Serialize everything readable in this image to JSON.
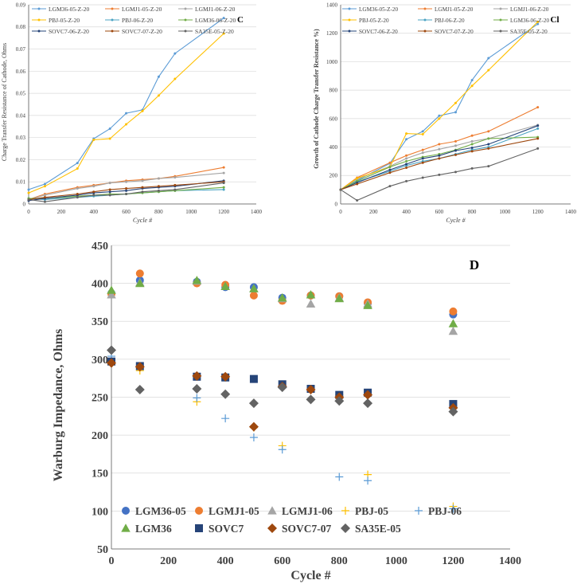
{
  "chart_data": [
    {
      "id": "C",
      "type": "line",
      "panel_label": "C",
      "ylabel": "Charge Transfer Resistance of Cathode, Ohms",
      "xlabel": "Cycle #",
      "xlim": [
        0,
        1400
      ],
      "ylim": [
        0,
        0.09
      ],
      "xticks": [
        "0",
        "200",
        "400",
        "600",
        "800",
        "1000",
        "1200",
        "1400"
      ],
      "yticks": [
        "0",
        "0.01",
        "0.02",
        "0.03",
        "0.04",
        "0.05",
        "0.06",
        "0.07",
        "0.08",
        "0.09"
      ],
      "ytick_values": [
        0,
        0.01,
        0.02,
        0.03,
        0.04,
        0.05,
        0.06,
        0.07,
        0.08,
        0.09
      ],
      "series": [
        {
          "name": "LGM36-05-Z-20",
          "color": "#5b9bd5",
          "x": [
            0,
            100,
            300,
            400,
            500,
            600,
            700,
            800,
            900,
            1200
          ],
          "y": [
            0.0065,
            0.009,
            0.0185,
            0.0295,
            0.034,
            0.041,
            0.0425,
            0.0575,
            0.068,
            0.084
          ]
        },
        {
          "name": "LGMJ1-05-Z-20",
          "color": "#ed7d31",
          "x": [
            0,
            100,
            300,
            400,
            500,
            600,
            700,
            800,
            900,
            1200
          ],
          "y": [
            0.002,
            0.0045,
            0.0075,
            0.0085,
            0.0095,
            0.0105,
            0.011,
            0.0115,
            0.0125,
            0.0165
          ]
        },
        {
          "name": "LGMJ1-06-Z-20",
          "color": "#a5a5a5",
          "x": [
            0,
            100,
            300,
            400,
            500,
            600,
            700,
            800,
            900,
            1200
          ],
          "y": [
            0.002,
            0.004,
            0.007,
            0.008,
            0.0095,
            0.01,
            0.0105,
            0.0115,
            0.012,
            0.014
          ]
        },
        {
          "name": "PBJ-05-Z-20",
          "color": "#ffc000",
          "x": [
            0,
            100,
            300,
            400,
            500,
            600,
            700,
            800,
            900,
            1200
          ],
          "y": [
            0.005,
            0.008,
            0.016,
            0.029,
            0.0295,
            0.036,
            0.042,
            0.049,
            0.0565,
            0.077
          ]
        },
        {
          "name": "PBJ-06-Z-20",
          "color": "#4ba3c3",
          "x": [
            0,
            100,
            300,
            400,
            500,
            600,
            700,
            800,
            900,
            1200
          ],
          "y": [
            0.0025,
            0.002,
            0.003,
            0.0035,
            0.004,
            0.0045,
            0.005,
            0.0055,
            0.006,
            0.0065
          ]
        },
        {
          "name": "LGM36-06-Z-20",
          "color": "#70ad47",
          "x": [
            0,
            100,
            300,
            400,
            500,
            600,
            700,
            800,
            900,
            1200
          ],
          "y": [
            0.0025,
            0.0025,
            0.0035,
            0.004,
            0.0045,
            0.0045,
            0.005,
            0.0055,
            0.006,
            0.0075
          ]
        },
        {
          "name": "SOVC7-06-Z-20",
          "color": "#264478",
          "x": [
            0,
            100,
            300,
            400,
            500,
            600,
            700,
            800,
            900,
            1200
          ],
          "y": [
            0.0015,
            0.0025,
            0.004,
            0.005,
            0.0055,
            0.006,
            0.007,
            0.0075,
            0.008,
            0.0105
          ]
        },
        {
          "name": "SOVC7-07-Z-20",
          "color": "#9e480e",
          "x": [
            0,
            100,
            300,
            400,
            500,
            600,
            700,
            800,
            900,
            1200
          ],
          "y": [
            0.002,
            0.003,
            0.0045,
            0.0055,
            0.0065,
            0.007,
            0.0075,
            0.008,
            0.0085,
            0.01
          ]
        },
        {
          "name": "SA35E-05-Z-20",
          "color": "#636363",
          "x": [
            0,
            100,
            300,
            400,
            500,
            600,
            700,
            800,
            900,
            1200
          ],
          "y": [
            0.002,
            0.001,
            0.003,
            0.004,
            0.004,
            0.0045,
            0.0055,
            0.006,
            0.0065,
            0.0095
          ]
        }
      ]
    },
    {
      "id": "C1",
      "type": "line",
      "panel_label": "Cl",
      "ylabel": "Growth of Cathode Charge Transfer Resistance %)",
      "xlabel": "Cycle #",
      "xlim": [
        0,
        1400
      ],
      "ylim": [
        0,
        1400
      ],
      "xticks": [
        "0",
        "200",
        "400",
        "600",
        "800",
        "1000",
        "1200",
        "1400"
      ],
      "yticks": [
        "0",
        "200",
        "400",
        "600",
        "800",
        "1000",
        "1200",
        "1400"
      ],
      "ytick_values": [
        0,
        200,
        400,
        600,
        800,
        1000,
        1200,
        1400
      ],
      "series": [
        {
          "name": "LGM36-05-Z-20",
          "color": "#5b9bd5",
          "x": [
            0,
            100,
            300,
            400,
            500,
            600,
            700,
            800,
            900,
            1200
          ],
          "y": [
            100,
            165,
            285,
            455,
            510,
            620,
            645,
            870,
            1025,
            1265
          ]
        },
        {
          "name": "LGMJ1-05-Z-20",
          "color": "#ed7d31",
          "x": [
            0,
            100,
            300,
            400,
            500,
            600,
            700,
            800,
            900,
            1200
          ],
          "y": [
            100,
            185,
            290,
            340,
            380,
            420,
            440,
            480,
            510,
            680
          ]
        },
        {
          "name": "LGMJ1-06-Z-20",
          "color": "#a5a5a5",
          "x": [
            0,
            100,
            300,
            400,
            500,
            600,
            700,
            800,
            900,
            1200
          ],
          "y": [
            100,
            175,
            265,
            320,
            360,
            385,
            410,
            440,
            460,
            555
          ]
        },
        {
          "name": "PBJ-05-Z-20",
          "color": "#ffc000",
          "x": [
            0,
            100,
            300,
            400,
            500,
            600,
            700,
            800,
            900,
            1200
          ],
          "y": [
            100,
            180,
            260,
            495,
            490,
            600,
            710,
            830,
            940,
            1280
          ]
        },
        {
          "name": "PBJ-06-Z-20",
          "color": "#4ba3c3",
          "x": [
            0,
            100,
            300,
            400,
            500,
            600,
            700,
            800,
            900,
            1200
          ],
          "y": [
            100,
            155,
            230,
            270,
            300,
            320,
            350,
            380,
            400,
            530
          ]
        },
        {
          "name": "LGM36-06-Z-20",
          "color": "#70ad47",
          "x": [
            0,
            100,
            300,
            400,
            500,
            600,
            700,
            800,
            900,
            1200
          ],
          "y": [
            100,
            160,
            260,
            300,
            330,
            350,
            380,
            420,
            460,
            470
          ]
        },
        {
          "name": "SOVC7-06-Z-20",
          "color": "#264478",
          "x": [
            0,
            100,
            300,
            400,
            500,
            600,
            700,
            800,
            900,
            1200
          ],
          "y": [
            100,
            150,
            240,
            280,
            320,
            340,
            375,
            395,
            420,
            550
          ]
        },
        {
          "name": "SOVC7-07-Z-20",
          "color": "#9e480e",
          "x": [
            0,
            100,
            300,
            400,
            500,
            600,
            700,
            800,
            900,
            1200
          ],
          "y": [
            100,
            140,
            220,
            255,
            290,
            320,
            345,
            370,
            390,
            460
          ]
        },
        {
          "name": "SA35E-05-Z-20",
          "color": "#636363",
          "x": [
            0,
            100,
            300,
            400,
            500,
            600,
            700,
            800,
            900,
            1200
          ],
          "y": [
            100,
            25,
            125,
            160,
            185,
            205,
            225,
            250,
            265,
            390
          ]
        }
      ]
    },
    {
      "id": "D",
      "type": "scatter",
      "panel_label": "D",
      "ylabel": "Warburg Impedance, Ohms",
      "xlabel": "Cycle #",
      "xlim": [
        0,
        1400
      ],
      "ylim": [
        50,
        450
      ],
      "xticks": [
        "0",
        "200",
        "400",
        "600",
        "800",
        "1000",
        "1200",
        "1400"
      ],
      "yticks": [
        "50",
        "100",
        "150",
        "200",
        "250",
        "300",
        "350",
        "400",
        "450"
      ],
      "ytick_values": [
        50,
        100,
        150,
        200,
        250,
        300,
        350,
        400,
        450
      ],
      "series": [
        {
          "name": "LGM36-05",
          "marker": "circle",
          "color": "#4472c4",
          "x": [
            0,
            100,
            300,
            400,
            500,
            600,
            700,
            800,
            900,
            1200
          ],
          "y": [
            387,
            404,
            402,
            395,
            395,
            381,
            384,
            383,
            374,
            359
          ]
        },
        {
          "name": "LGMJ1-05",
          "marker": "circle",
          "color": "#ed7d31",
          "x": [
            0,
            100,
            300,
            400,
            500,
            600,
            700,
            800,
            900,
            1200
          ],
          "y": [
            386,
            413,
            400,
            398,
            384,
            377,
            384,
            383,
            375,
            363
          ]
        },
        {
          "name": "LGMJ1-06",
          "marker": "triangle",
          "color": "#a5a5a5",
          "x": [
            0,
            100,
            300,
            400,
            500,
            600,
            700,
            800,
            900,
            1200
          ],
          "y": [
            385,
            401,
            403,
            396,
            393,
            380,
            373,
            381,
            373,
            337
          ]
        },
        {
          "name": "PBJ-05",
          "marker": "plus",
          "color": "#ffc000",
          "x": [
            0,
            100,
            300,
            400,
            500,
            600,
            700,
            800,
            900,
            1200
          ],
          "y": [
            296,
            285,
            244,
            276,
            210,
            186,
            260,
            253,
            148,
            106
          ]
        },
        {
          "name": "PBJ-06",
          "marker": "plus",
          "color": "#5b9bd5",
          "x": [
            0,
            100,
            300,
            400,
            500,
            600,
            700,
            800,
            900,
            1200
          ],
          "y": [
            304,
            291,
            249,
            222,
            197,
            181,
            260,
            145,
            140,
            103
          ]
        },
        {
          "name": "LGM36",
          "marker": "triangle",
          "color": "#70ad47",
          "x": [
            0,
            100,
            300,
            400,
            500,
            600,
            700,
            800,
            900,
            1200
          ],
          "y": [
            391,
            400,
            404,
            396,
            393,
            381,
            385,
            380,
            371,
            347
          ]
        },
        {
          "name": "SOVC7",
          "marker": "square",
          "color": "#264478",
          "x": [
            0,
            100,
            300,
            400,
            500,
            600,
            700,
            800,
            900,
            1200
          ],
          "y": [
            297,
            291,
            277,
            276,
            274,
            267,
            261,
            253,
            256,
            241
          ]
        },
        {
          "name": "SOVC7-07",
          "marker": "diamond",
          "color": "#9e480e",
          "x": [
            0,
            100,
            300,
            400,
            500,
            600,
            700,
            800,
            900,
            1200
          ],
          "y": [
            295,
            290,
            278,
            277,
            211,
            264,
            260,
            250,
            253,
            236
          ]
        },
        {
          "name": "SA35E-05",
          "marker": "diamond",
          "color": "#636363",
          "x": [
            0,
            100,
            300,
            400,
            500,
            600,
            700,
            800,
            900,
            1200
          ],
          "y": [
            312,
            260,
            261,
            254,
            242,
            263,
            247,
            245,
            242,
            231
          ]
        }
      ]
    }
  ]
}
